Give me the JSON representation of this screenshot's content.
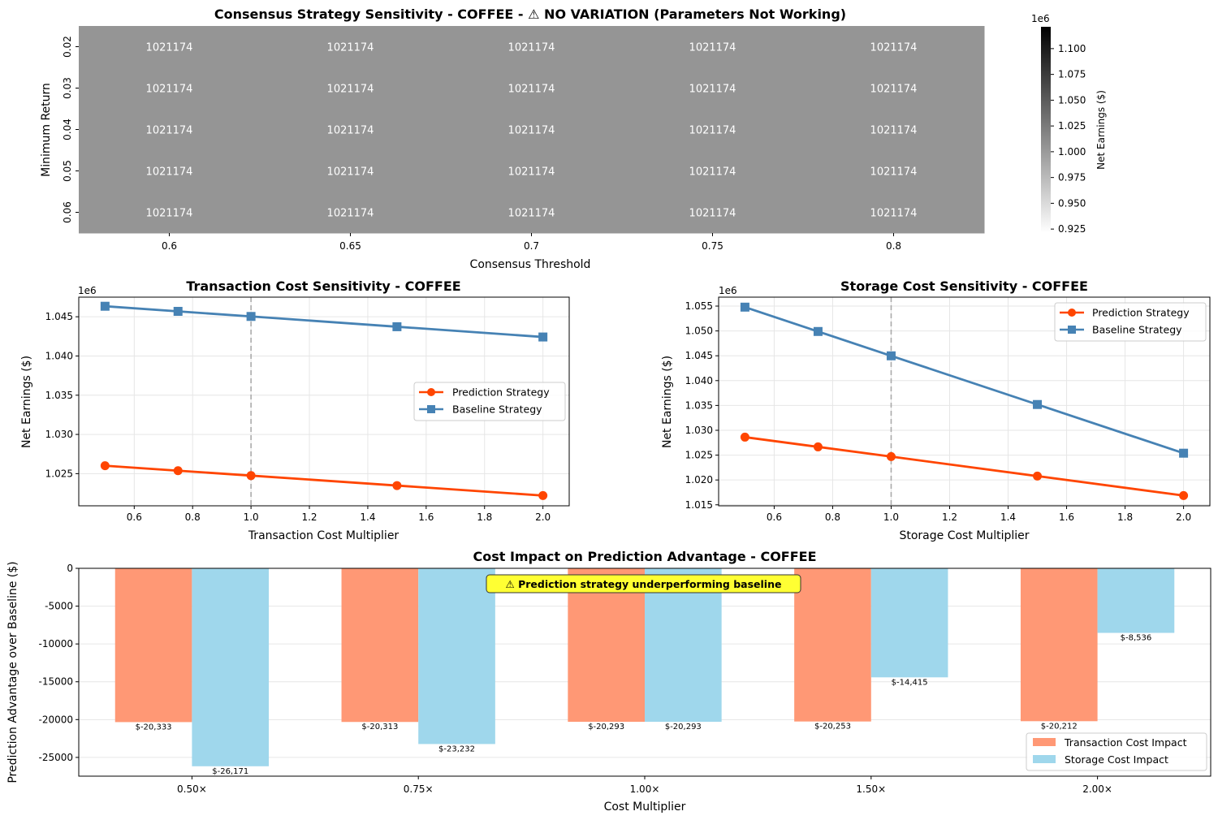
{
  "chart_data": [
    {
      "type": "heatmap",
      "title": "Consensus Strategy Sensitivity - COFFEE - ⚠ NO VARIATION (Parameters Not Working)",
      "xlabel": "Consensus Threshold",
      "ylabel": "Minimum Return",
      "x_categories": [
        "0.6",
        "0.65",
        "0.7",
        "0.75",
        "0.8"
      ],
      "y_categories": [
        "0.02",
        "0.03",
        "0.04",
        "0.05",
        "0.06"
      ],
      "cell_color": "#959595",
      "values": [
        [
          "1021174",
          "1021174",
          "1021174",
          "1021174",
          "1021174"
        ],
        [
          "1021174",
          "1021174",
          "1021174",
          "1021174",
          "1021174"
        ],
        [
          "1021174",
          "1021174",
          "1021174",
          "1021174",
          "1021174"
        ],
        [
          "1021174",
          "1021174",
          "1021174",
          "1021174",
          "1021174"
        ],
        [
          "1021174",
          "1021174",
          "1021174",
          "1021174",
          "1021174"
        ]
      ],
      "colorbar": {
        "label": "Net Earnings ($)",
        "exponent": "1e6",
        "ticks": [
          "1.100",
          "1.075",
          "1.050",
          "1.025",
          "1.000",
          "0.975",
          "0.950",
          "0.925"
        ],
        "range": [
          0.921174,
          1.121174
        ]
      }
    },
    {
      "type": "line",
      "title": "Transaction Cost Sensitivity - COFFEE",
      "xlabel": "Transaction Cost Multiplier",
      "ylabel": "Net Earnings ($)",
      "exponent": "1e6",
      "x": [
        0.5,
        0.75,
        1.0,
        1.5,
        2.0
      ],
      "xlim": [
        0.41,
        2.09
      ],
      "ylim": [
        1.0209,
        1.0475
      ],
      "xticks": [
        "0.6",
        "0.8",
        "1.0",
        "1.2",
        "1.4",
        "1.6",
        "1.8",
        "2.0"
      ],
      "yticks": [
        "1.025",
        "1.030",
        "1.035",
        "1.040",
        "1.045"
      ],
      "vline": 1.0,
      "legend_position": "center-right",
      "series": [
        {
          "name": "Prediction Strategy",
          "color": "#ff4500",
          "marker": "circle",
          "values": [
            1.02601,
            1.02538,
            1.02475,
            1.02348,
            1.02221
          ]
        },
        {
          "name": "Baseline Strategy",
          "color": "#4682b4",
          "marker": "square",
          "values": [
            1.04634,
            1.04569,
            1.04504,
            1.04373,
            1.04242
          ]
        }
      ]
    },
    {
      "type": "line",
      "title": "Storage Cost Sensitivity - COFFEE",
      "xlabel": "Storage Cost Multiplier",
      "ylabel": "Net Earnings ($)",
      "exponent": "1e6",
      "x": [
        0.5,
        0.75,
        1.0,
        1.5,
        2.0
      ],
      "xlim": [
        0.41,
        2.09
      ],
      "ylim": [
        1.0148,
        1.0568
      ],
      "xticks": [
        "0.6",
        "0.8",
        "1.0",
        "1.2",
        "1.4",
        "1.6",
        "1.8",
        "2.0"
      ],
      "yticks": [
        "1.015",
        "1.020",
        "1.025",
        "1.030",
        "1.035",
        "1.040",
        "1.045",
        "1.050",
        "1.055"
      ],
      "vline": 1.0,
      "legend_position": "upper-right",
      "series": [
        {
          "name": "Prediction Strategy",
          "color": "#ff4500",
          "marker": "circle",
          "values": [
            1.02862,
            1.02666,
            1.0247,
            1.02078,
            1.01686
          ]
        },
        {
          "name": "Baseline Strategy",
          "color": "#4682b4",
          "marker": "square",
          "values": [
            1.05479,
            1.04989,
            1.04499,
            1.03519,
            1.02539
          ]
        }
      ]
    },
    {
      "type": "bar",
      "title": "Cost Impact on Prediction Advantage - COFFEE",
      "xlabel": "Cost Multiplier",
      "ylabel": "Prediction Advantage over Baseline ($)",
      "categories": [
        "0.50×",
        "0.75×",
        "1.00×",
        "1.50×",
        "2.00×"
      ],
      "ylim": [
        -27480,
        0
      ],
      "yticks": [
        0,
        -5000,
        -10000,
        -15000,
        -20000,
        -25000
      ],
      "annotation": "⚠ Prediction strategy underperforming baseline",
      "legend_position": "lower-right",
      "series": [
        {
          "name": "Transaction Cost Impact",
          "color": "#ff9875",
          "values": [
            -20333,
            -20313,
            -20293,
            -20253,
            -20212
          ],
          "labels": [
            "$-20,333",
            "$-20,313",
            "$-20,293",
            "$-20,253",
            "$-20,212"
          ]
        },
        {
          "name": "Storage Cost Impact",
          "color": "#9fd7ec",
          "values": [
            -26171,
            -23232,
            -20293,
            -14415,
            -8536
          ],
          "labels": [
            "$-26,171",
            "$-23,232",
            "$-20,293",
            "$-14,415",
            "$-8,536"
          ]
        }
      ]
    }
  ]
}
